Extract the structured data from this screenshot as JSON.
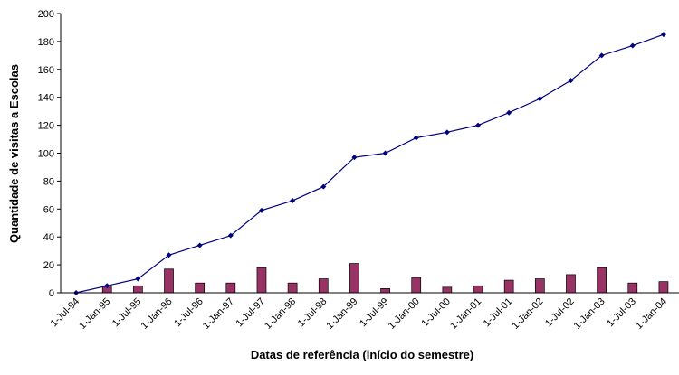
{
  "chart_data": {
    "type": "bar-line",
    "xlabel": "Datas de referência (início do semestre)",
    "ylabel": "Quantidade de visitas a Escolas",
    "categories": [
      "1-Jul-94",
      "1-Jan-95",
      "1-Jul-95",
      "1-Jan-96",
      "1-Jul-96",
      "1-Jan-97",
      "1-Jul-97",
      "1-Jan-98",
      "1-Jul-98",
      "1-Jan-99",
      "1-Jul-99",
      "1-Jan-00",
      "1-Jul-00",
      "1-Jan-01",
      "1-Jul-01",
      "1-Jan-02",
      "1-Jul-02",
      "1-Jan-03",
      "1-Jul-03",
      "1-Jan-04"
    ],
    "series": [
      {
        "type": "bar",
        "color": "#993366",
        "values": [
          null,
          5,
          5,
          17,
          7,
          7,
          18,
          7,
          10,
          21,
          3,
          11,
          4,
          5,
          9,
          10,
          13,
          18,
          7,
          8
        ]
      },
      {
        "type": "line",
        "color": "#000080",
        "values": [
          0,
          5,
          10,
          27,
          34,
          41,
          59,
          66,
          76,
          97,
          100,
          111,
          115,
          120,
          129,
          139,
          152,
          170,
          177,
          185
        ]
      }
    ],
    "ylim": [
      0,
      200
    ],
    "yticks": [
      0,
      20,
      40,
      60,
      80,
      100,
      120,
      140,
      160,
      180,
      200
    ],
    "grid": false
  }
}
